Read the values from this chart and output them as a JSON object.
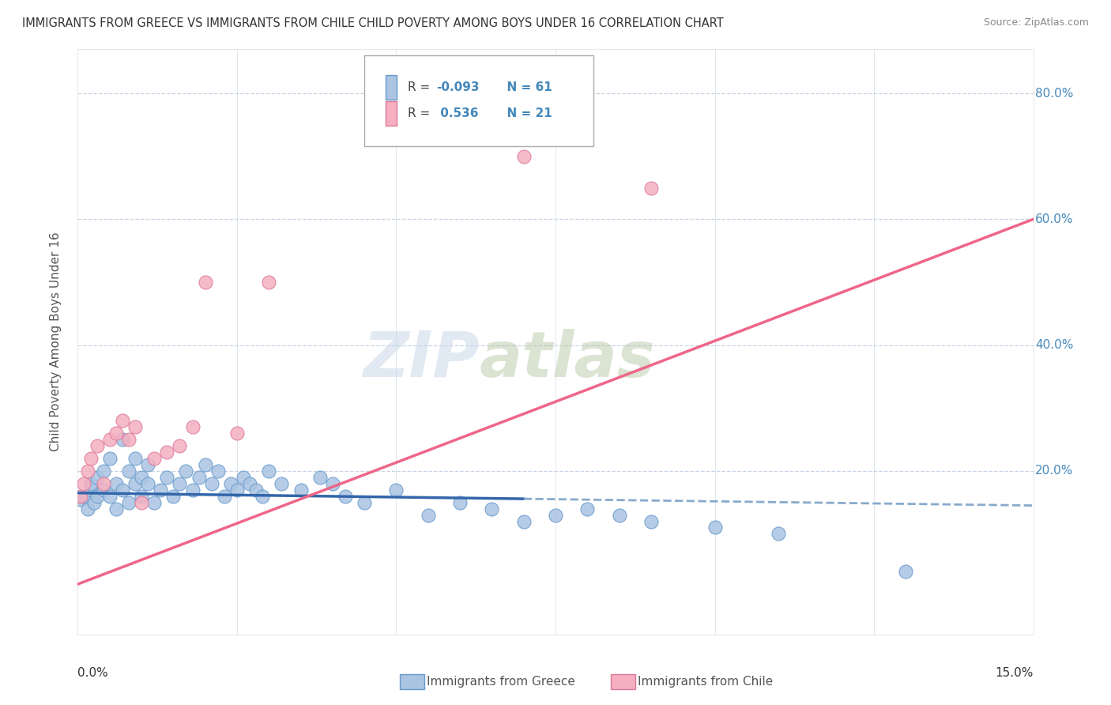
{
  "title": "IMMIGRANTS FROM GREECE VS IMMIGRANTS FROM CHILE CHILD POVERTY AMONG BOYS UNDER 16 CORRELATION CHART",
  "source": "Source: ZipAtlas.com",
  "ylabel": "Child Poverty Among Boys Under 16",
  "xlim": [
    0,
    0.15
  ],
  "ylim": [
    -0.06,
    0.87
  ],
  "greece_color": "#aac4e2",
  "chile_color": "#f5afc0",
  "greece_edge": "#6699cc",
  "chile_edge": "#dd7799",
  "trend_greece_solid_color": "#3366aa",
  "trend_greece_dash_color": "#88aacc",
  "trend_chile_color": "#ee6688",
  "watermark_zip": "#c5d5e8",
  "watermark_atlas": "#b8c8a8",
  "background_color": "#ffffff",
  "grid_color": "#c8d4e4",
  "ytick_color": "#4488bb",
  "greece_r": "-0.093",
  "greece_n": "61",
  "chile_r": "0.536",
  "chile_n": "21",
  "greece_x": [
    0.0005,
    0.001,
    0.0015,
    0.002,
    0.002,
    0.0025,
    0.003,
    0.003,
    0.004,
    0.004,
    0.005,
    0.005,
    0.006,
    0.006,
    0.007,
    0.007,
    0.008,
    0.008,
    0.009,
    0.009,
    0.01,
    0.01,
    0.011,
    0.011,
    0.012,
    0.013,
    0.014,
    0.015,
    0.016,
    0.017,
    0.018,
    0.019,
    0.02,
    0.021,
    0.022,
    0.023,
    0.024,
    0.025,
    0.026,
    0.027,
    0.028,
    0.029,
    0.03,
    0.032,
    0.035,
    0.038,
    0.04,
    0.042,
    0.045,
    0.05,
    0.055,
    0.06,
    0.065,
    0.07,
    0.075,
    0.08,
    0.085,
    0.09,
    0.1,
    0.11,
    0.13
  ],
  "greece_y": [
    0.155,
    0.16,
    0.14,
    0.17,
    0.18,
    0.15,
    0.16,
    0.19,
    0.17,
    0.2,
    0.22,
    0.16,
    0.18,
    0.14,
    0.25,
    0.17,
    0.2,
    0.15,
    0.18,
    0.22,
    0.19,
    0.16,
    0.21,
    0.18,
    0.15,
    0.17,
    0.19,
    0.16,
    0.18,
    0.2,
    0.17,
    0.19,
    0.21,
    0.18,
    0.2,
    0.16,
    0.18,
    0.17,
    0.19,
    0.18,
    0.17,
    0.16,
    0.2,
    0.18,
    0.17,
    0.19,
    0.18,
    0.16,
    0.15,
    0.17,
    0.13,
    0.15,
    0.14,
    0.12,
    0.13,
    0.14,
    0.13,
    0.12,
    0.11,
    0.1,
    0.04
  ],
  "chile_x": [
    0.0005,
    0.001,
    0.0015,
    0.002,
    0.003,
    0.004,
    0.005,
    0.006,
    0.007,
    0.008,
    0.009,
    0.01,
    0.012,
    0.014,
    0.016,
    0.018,
    0.02,
    0.025,
    0.03,
    0.07,
    0.09
  ],
  "chile_y": [
    0.16,
    0.18,
    0.2,
    0.22,
    0.24,
    0.18,
    0.25,
    0.26,
    0.28,
    0.25,
    0.27,
    0.15,
    0.22,
    0.23,
    0.24,
    0.27,
    0.5,
    0.26,
    0.5,
    0.7,
    0.65
  ]
}
